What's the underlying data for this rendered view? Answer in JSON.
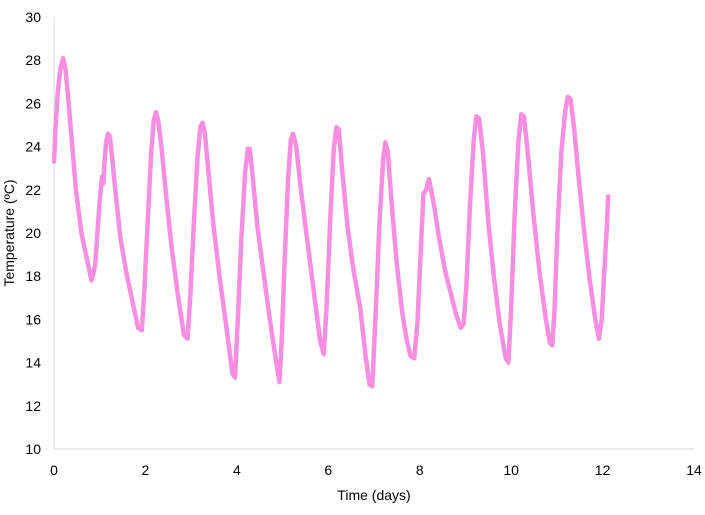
{
  "chart_data": {
    "type": "line",
    "xlabel": "Time (days)",
    "ylabel": "Temperature (ºC)",
    "xlim": [
      0,
      14
    ],
    "ylim": [
      10,
      30
    ],
    "xticks": [
      0,
      2,
      4,
      6,
      8,
      10,
      12,
      14
    ],
    "yticks": [
      10,
      12,
      14,
      16,
      18,
      20,
      22,
      24,
      26,
      28,
      30
    ],
    "grid": false,
    "legend": "none",
    "colors": {
      "series": "#f78ee0",
      "axis": "#d9d9d9",
      "text": "#000000"
    },
    "series": [
      {
        "x": [
          0.0,
          0.03,
          0.08,
          0.14,
          0.2,
          0.25,
          0.3,
          0.38,
          0.48,
          0.6,
          0.72,
          0.82,
          0.9,
          0.95,
          1.0,
          1.05,
          1.08,
          1.1,
          1.14,
          1.18,
          1.22,
          1.27,
          1.35,
          1.45,
          1.58,
          1.72,
          1.84,
          1.92,
          1.98,
          2.05,
          2.12,
          2.18,
          2.23,
          2.28,
          2.35,
          2.45,
          2.58,
          2.72,
          2.84,
          2.92,
          2.98,
          3.06,
          3.14,
          3.2,
          3.25,
          3.3,
          3.38,
          3.48,
          3.62,
          3.78,
          3.9,
          3.96,
          4.02,
          4.1,
          4.18,
          4.24,
          4.28,
          4.35,
          4.45,
          4.58,
          4.72,
          4.84,
          4.93,
          4.98,
          5.05,
          5.12,
          5.18,
          5.23,
          5.3,
          5.4,
          5.55,
          5.7,
          5.82,
          5.9,
          5.96,
          6.05,
          6.12,
          6.18,
          6.23,
          6.3,
          6.42,
          6.55,
          6.7,
          6.82,
          6.9,
          6.96,
          7.03,
          7.12,
          7.2,
          7.25,
          7.3,
          7.38,
          7.5,
          7.62,
          7.72,
          7.8,
          7.88,
          7.95,
          8.02,
          8.08,
          8.14,
          8.2,
          8.26,
          8.32,
          8.42,
          8.55,
          8.68,
          8.8,
          8.9,
          8.96,
          9.02,
          9.1,
          9.18,
          9.24,
          9.3,
          9.38,
          9.5,
          9.62,
          9.75,
          9.88,
          9.94,
          10.0,
          10.08,
          10.16,
          10.22,
          10.28,
          10.36,
          10.48,
          10.62,
          10.76,
          10.85,
          10.9,
          10.95,
          11.02,
          11.1,
          11.18,
          11.24,
          11.3,
          11.38,
          11.48,
          11.6,
          11.72,
          11.84,
          11.92,
          11.98,
          12.04,
          12.1,
          12.12
        ],
        "values": [
          23.3,
          24.8,
          26.5,
          27.6,
          28.1,
          27.6,
          26.5,
          24.5,
          22.0,
          20.0,
          18.8,
          17.8,
          18.5,
          20.0,
          21.5,
          22.6,
          22.3,
          23.2,
          24.2,
          24.6,
          24.5,
          23.5,
          21.8,
          19.8,
          18.2,
          16.8,
          15.6,
          15.5,
          17.5,
          20.5,
          23.5,
          25.2,
          25.6,
          25.2,
          24.0,
          21.8,
          19.2,
          17.0,
          15.3,
          15.1,
          17.0,
          20.5,
          23.5,
          24.9,
          25.1,
          24.6,
          22.8,
          20.5,
          18.0,
          15.5,
          13.5,
          13.3,
          16.0,
          19.8,
          22.8,
          23.9,
          23.9,
          22.5,
          20.3,
          18.2,
          16.0,
          14.3,
          13.1,
          15.0,
          19.0,
          22.5,
          24.3,
          24.6,
          24.0,
          22.0,
          19.5,
          17.0,
          15.0,
          14.4,
          16.5,
          21.0,
          23.9,
          24.9,
          24.8,
          23.0,
          20.3,
          18.3,
          16.5,
          14.2,
          13.0,
          12.9,
          16.0,
          20.5,
          23.4,
          24.2,
          23.8,
          21.5,
          18.5,
          16.3,
          15.0,
          14.3,
          14.2,
          15.8,
          19.0,
          21.8,
          22.0,
          22.5,
          21.9,
          21.2,
          19.8,
          18.3,
          17.2,
          16.2,
          15.6,
          15.8,
          17.5,
          21.3,
          24.3,
          25.4,
          25.3,
          23.8,
          20.5,
          18.0,
          15.8,
          14.2,
          14.0,
          16.5,
          21.0,
          24.3,
          25.5,
          25.4,
          23.8,
          21.0,
          18.2,
          16.0,
          14.9,
          14.8,
          16.5,
          20.5,
          23.8,
          25.6,
          26.3,
          26.2,
          24.8,
          22.5,
          20.0,
          17.8,
          16.0,
          15.1,
          16.0,
          18.3,
          20.5,
          21.7
        ]
      }
    ]
  }
}
